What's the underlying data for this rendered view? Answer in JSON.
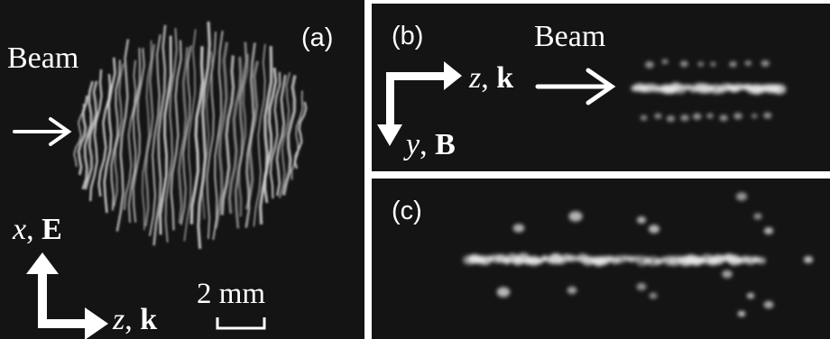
{
  "panels": {
    "a": {
      "label": "(a)",
      "beam_label": "Beam",
      "axis_vertical": {
        "var": "x",
        "sep": ", ",
        "vec": "E"
      },
      "axis_horizontal": {
        "var": "z",
        "sep": ", ",
        "vec": "k"
      },
      "scale_bar_label": "2 mm"
    },
    "b": {
      "label": "(b)",
      "beam_label": "Beam",
      "axis_horizontal": {
        "var": "z",
        "sep": ", ",
        "vec": "k"
      },
      "axis_vertical": {
        "var": "y",
        "sep": ", ",
        "vec": "B"
      }
    },
    "c": {
      "label": "(c)"
    }
  },
  "colors": {
    "background": "#141414",
    "foreground": "#ffffff",
    "glow": "#e6e6e6"
  }
}
